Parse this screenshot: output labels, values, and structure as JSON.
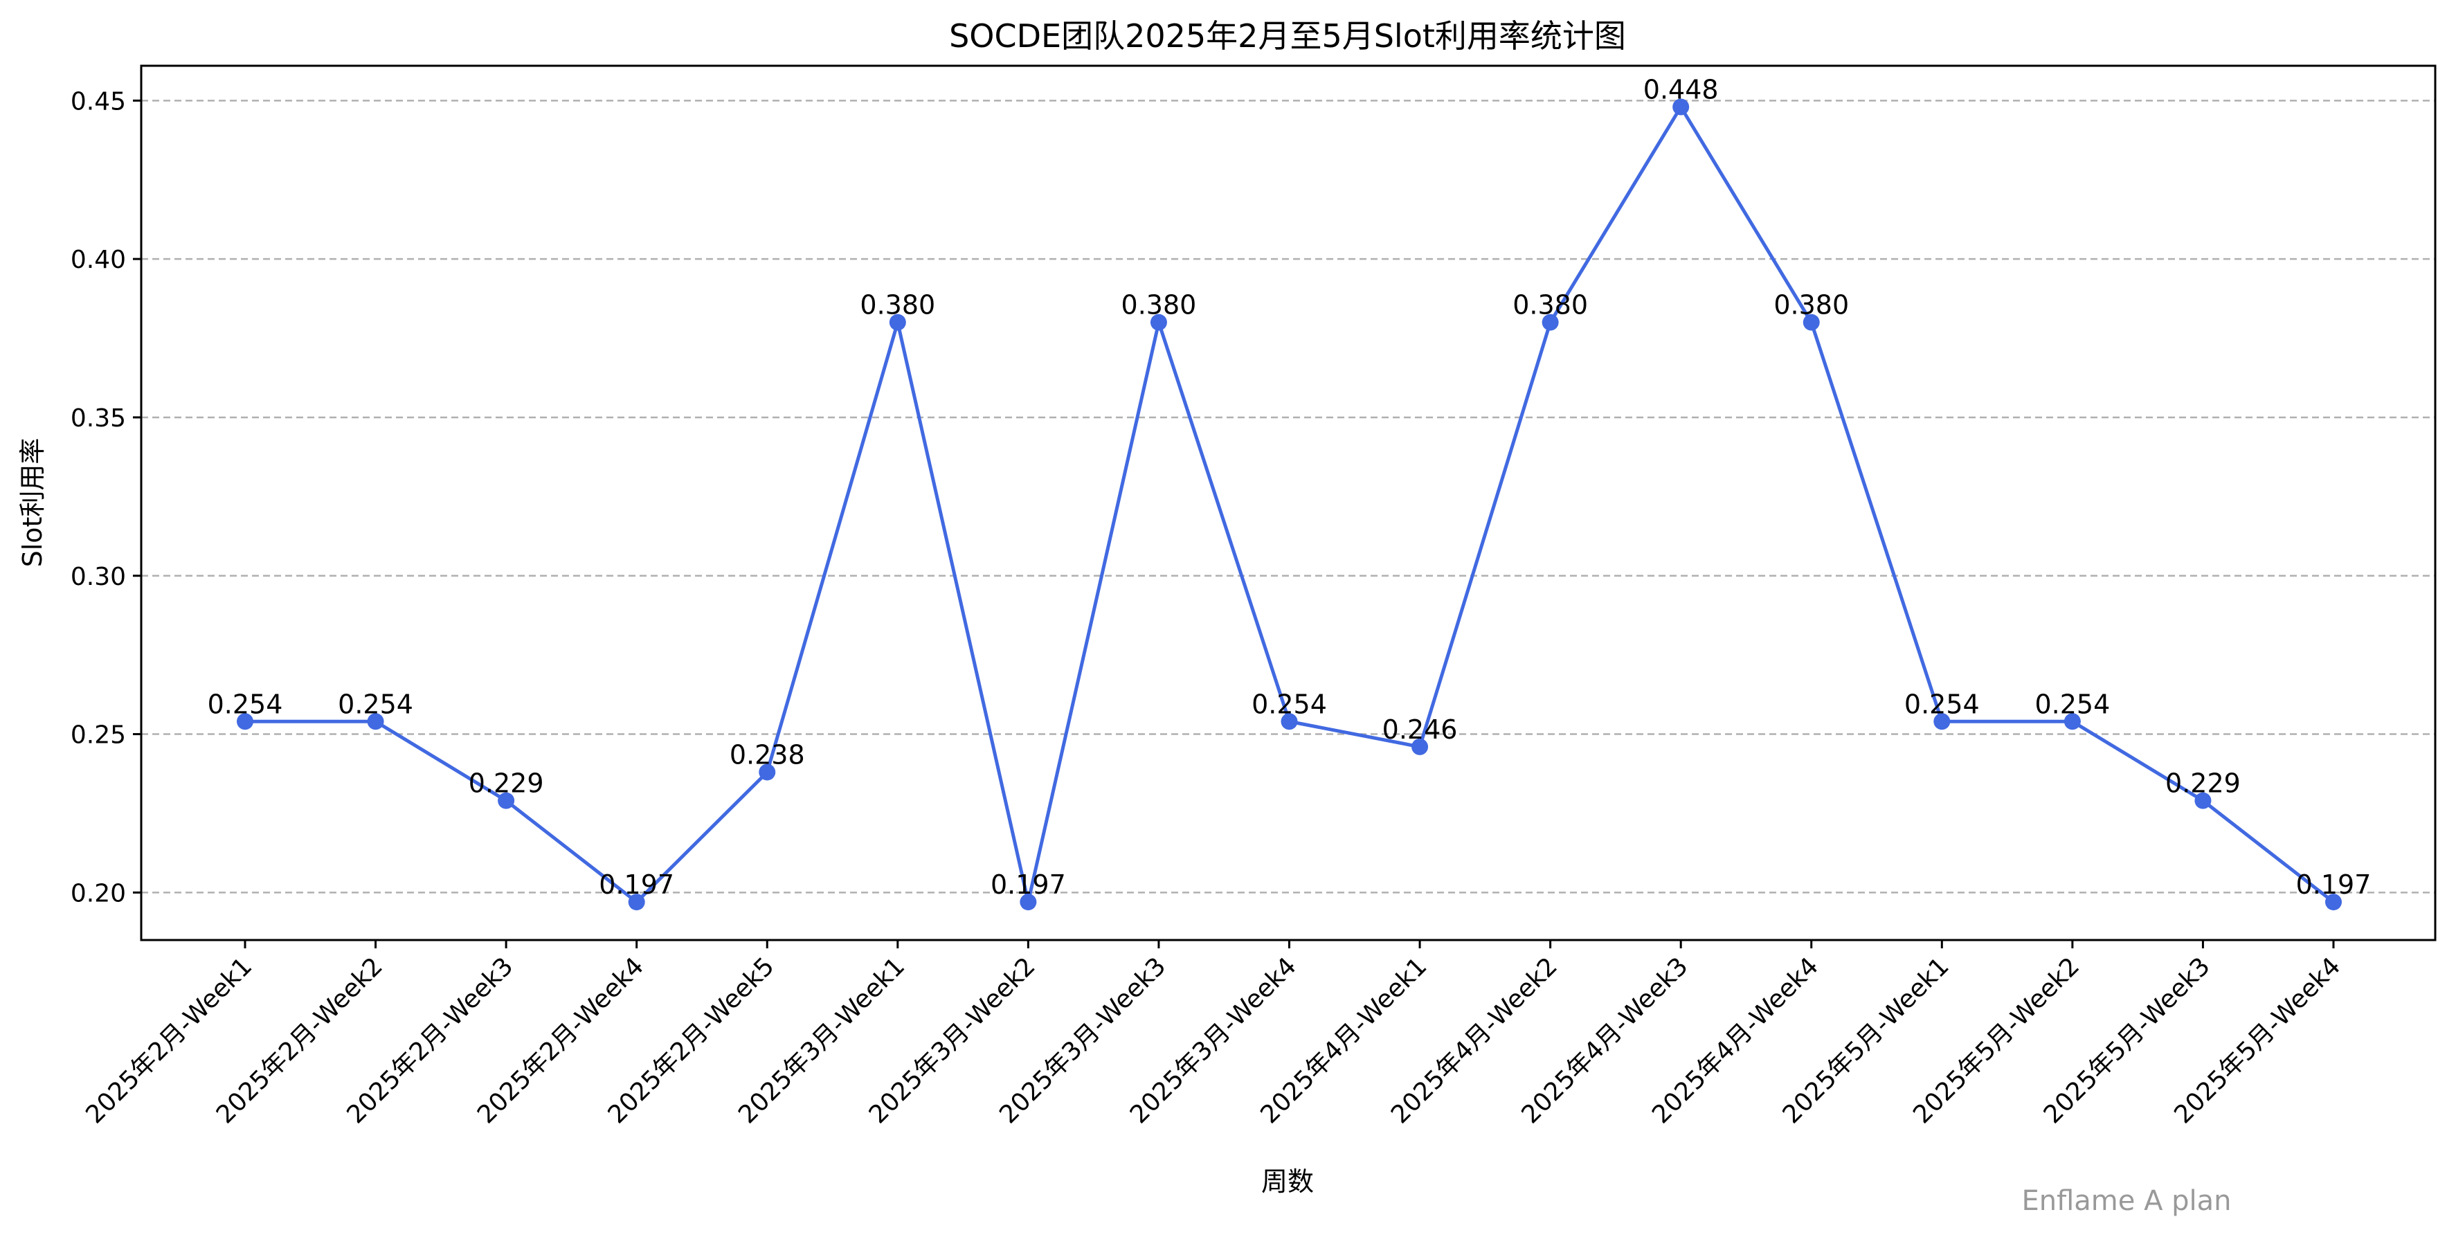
{
  "chart_data": {
    "type": "line",
    "title": "SOCDE团队2025年2月至5月Slot利用率统计图",
    "xlabel": "周数",
    "ylabel": "Slot利用率",
    "categories": [
      "2025年2月-Week1",
      "2025年2月-Week2",
      "2025年2月-Week3",
      "2025年2月-Week4",
      "2025年2月-Week5",
      "2025年3月-Week1",
      "2025年3月-Week2",
      "2025年3月-Week3",
      "2025年3月-Week4",
      "2025年4月-Week1",
      "2025年4月-Week2",
      "2025年4月-Week3",
      "2025年4月-Week4",
      "2025年5月-Week1",
      "2025年5月-Week2",
      "2025年5月-Week3",
      "2025年5月-Week4"
    ],
    "series": [
      {
        "values": [
          0.254,
          0.254,
          0.229,
          0.197,
          0.238,
          0.38,
          0.197,
          0.38,
          0.254,
          0.246,
          0.38,
          0.448,
          0.38,
          0.254,
          0.254,
          0.229,
          0.197
        ],
        "value_labels": [
          "0.254",
          "0.254",
          "0.229",
          "0.197",
          "0.238",
          "0.380",
          "0.197",
          "0.380",
          "0.254",
          "0.246",
          "0.380",
          "0.448",
          "0.380",
          "0.254",
          "0.254",
          "0.229",
          "0.197"
        ],
        "color": "#4169E1",
        "marker": "circle"
      }
    ],
    "yticks": [
      0.2,
      0.25,
      0.3,
      0.35,
      0.4,
      0.45
    ],
    "ytick_labels": [
      "0.20",
      "0.25",
      "0.30",
      "0.35",
      "0.40",
      "0.45"
    ],
    "ylim": [
      0.185,
      0.461
    ],
    "grid": "y-dashed",
    "grid_color": "#b0b0b0",
    "watermark": "Enflame A plan"
  }
}
